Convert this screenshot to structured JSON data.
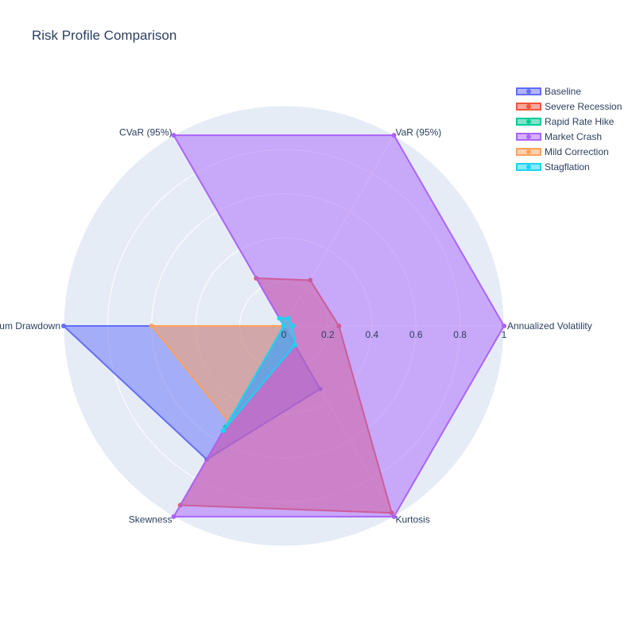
{
  "chart_data": {
    "type": "radar",
    "title": "Risk Profile Comparison",
    "axes": [
      "Annualized Volatility",
      "VaR (95%)",
      "CVaR (95%)",
      "Maximum Drawdown",
      "Skewness",
      "Kurtosis"
    ],
    "radial_range": [
      0,
      1
    ],
    "radial_ticks": [
      "0",
      "0.2",
      "0.4",
      "0.6",
      "0.8",
      "1"
    ],
    "radial_tick_values": [
      0,
      0.2,
      0.4,
      0.6,
      0.8,
      1
    ],
    "grid": true,
    "legend_position": "top-right",
    "series": [
      {
        "name": "Baseline",
        "color": "#636efa",
        "values": [
          0.0,
          0.0,
          0.0,
          1.0,
          0.7,
          0.33
        ]
      },
      {
        "name": "Severe Recession",
        "color": "#ef553b",
        "values": [
          0.25,
          0.24,
          0.25,
          0.0,
          0.94,
          0.98
        ]
      },
      {
        "name": "Rapid Rate Hike",
        "color": "#00cc96",
        "values": [
          0.0,
          0.0,
          0.0,
          0.0,
          0.53,
          0.0
        ]
      },
      {
        "name": "Market Crash",
        "color": "#ab63fa",
        "values": [
          1.0,
          1.0,
          1.0,
          0.0,
          1.0,
          1.0
        ]
      },
      {
        "name": "Mild Correction",
        "color": "#ffa15a",
        "values": [
          0.0,
          0.0,
          0.0,
          0.6,
          0.5,
          0.0
        ]
      },
      {
        "name": "Stagflation",
        "color": "#19d3f3",
        "values": [
          0.04,
          0.04,
          0.04,
          0.0,
          0.55,
          0.1
        ]
      }
    ]
  }
}
